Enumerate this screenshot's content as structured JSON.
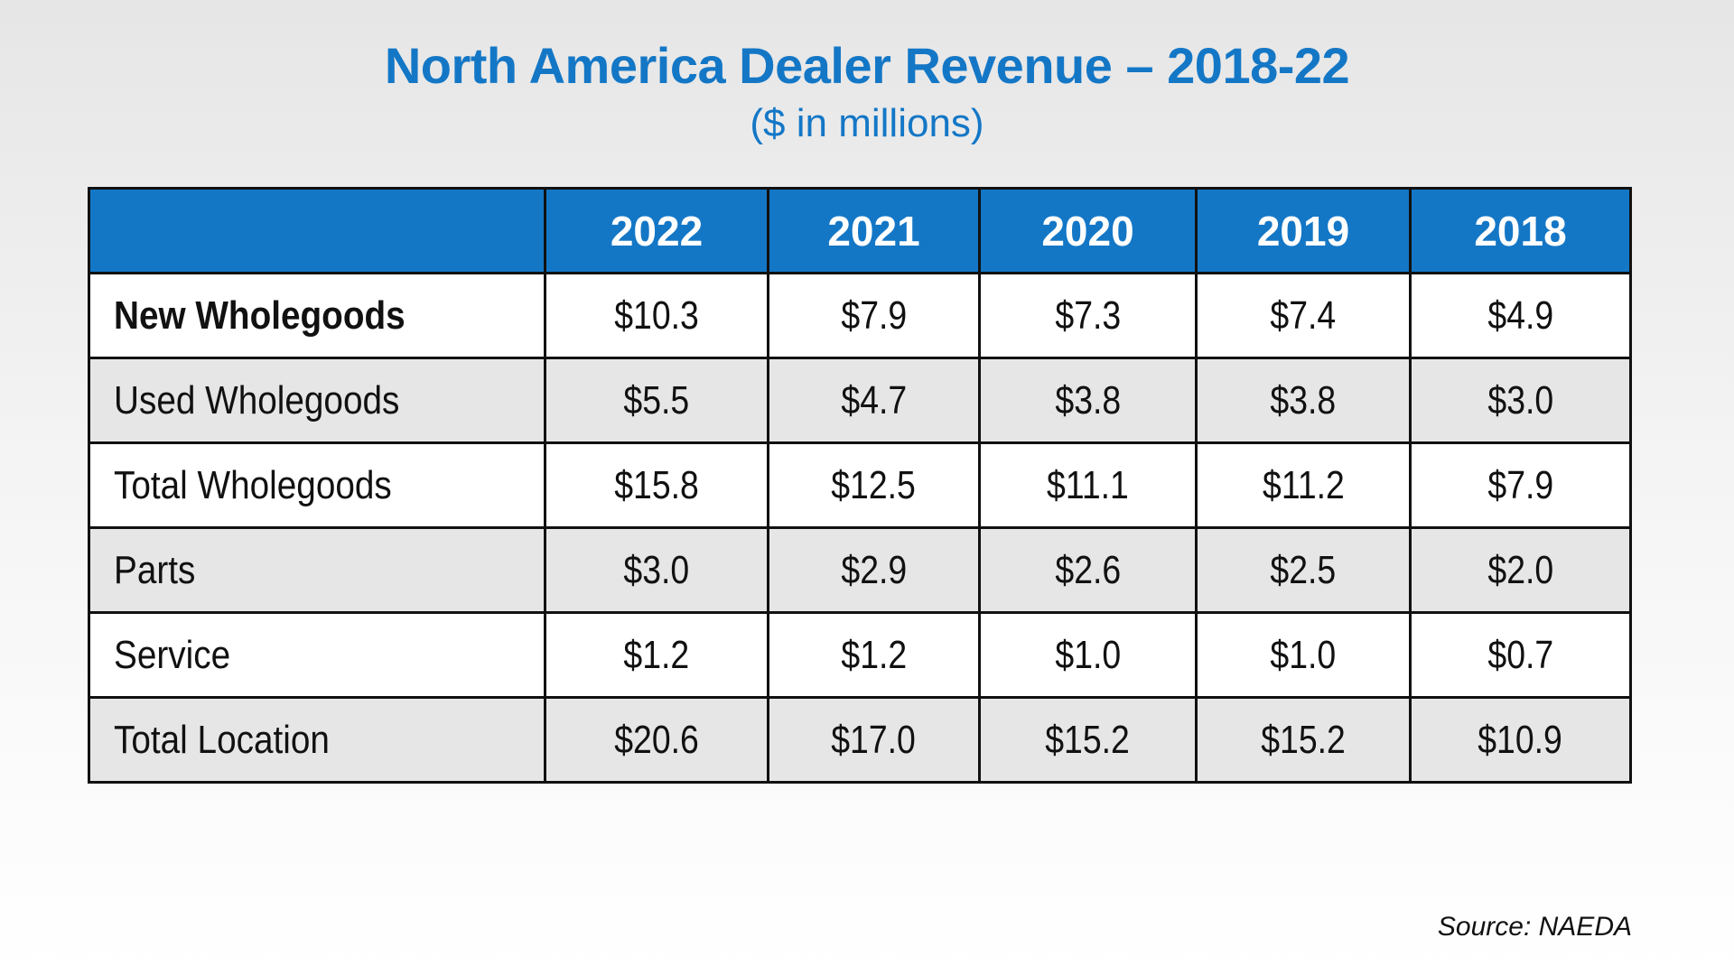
{
  "title": "North America Dealer Revenue – 2018-22",
  "subtitle": "($ in millions)",
  "source": "Source: NAEDA",
  "colors": {
    "header_bg": "#1477c6",
    "title": "#1477c6",
    "row_alt": "#e6e6e6"
  },
  "chart_data": {
    "type": "table",
    "title": "North America Dealer Revenue – 2018-22",
    "subtitle": "($ in millions)",
    "columns": [
      "",
      "2022",
      "2021",
      "2020",
      "2019",
      "2018"
    ],
    "rows": [
      {
        "label": "New Wholegoods",
        "values": [
          "$10.3",
          "$7.9",
          "$7.3",
          "$7.4",
          "$4.9"
        ]
      },
      {
        "label": "Used Wholegoods",
        "values": [
          "$5.5",
          "$4.7",
          "$3.8",
          "$3.8",
          "$3.0"
        ]
      },
      {
        "label": "Total Wholegoods",
        "values": [
          "$15.8",
          "$12.5",
          "$11.1",
          "$11.2",
          "$7.9"
        ]
      },
      {
        "label": "Parts",
        "values": [
          "$3.0",
          "$2.9",
          "$2.6",
          "$2.5",
          "$2.0"
        ]
      },
      {
        "label": "Service",
        "values": [
          "$1.2",
          "$1.2",
          "$1.0",
          "$1.0",
          "$0.7"
        ]
      },
      {
        "label": "Total Location",
        "values": [
          "$20.6",
          "$17.0",
          "$15.2",
          "$15.2",
          "$10.9"
        ]
      }
    ],
    "numeric_values": [
      [
        10.3,
        7.9,
        7.3,
        7.4,
        4.9
      ],
      [
        5.5,
        4.7,
        3.8,
        3.8,
        3.0
      ],
      [
        15.8,
        12.5,
        11.1,
        11.2,
        7.9
      ],
      [
        3.0,
        2.9,
        2.6,
        2.5,
        2.0
      ],
      [
        1.2,
        1.2,
        1.0,
        1.0,
        0.7
      ],
      [
        20.6,
        17.0,
        15.2,
        15.2,
        10.9
      ]
    ]
  }
}
